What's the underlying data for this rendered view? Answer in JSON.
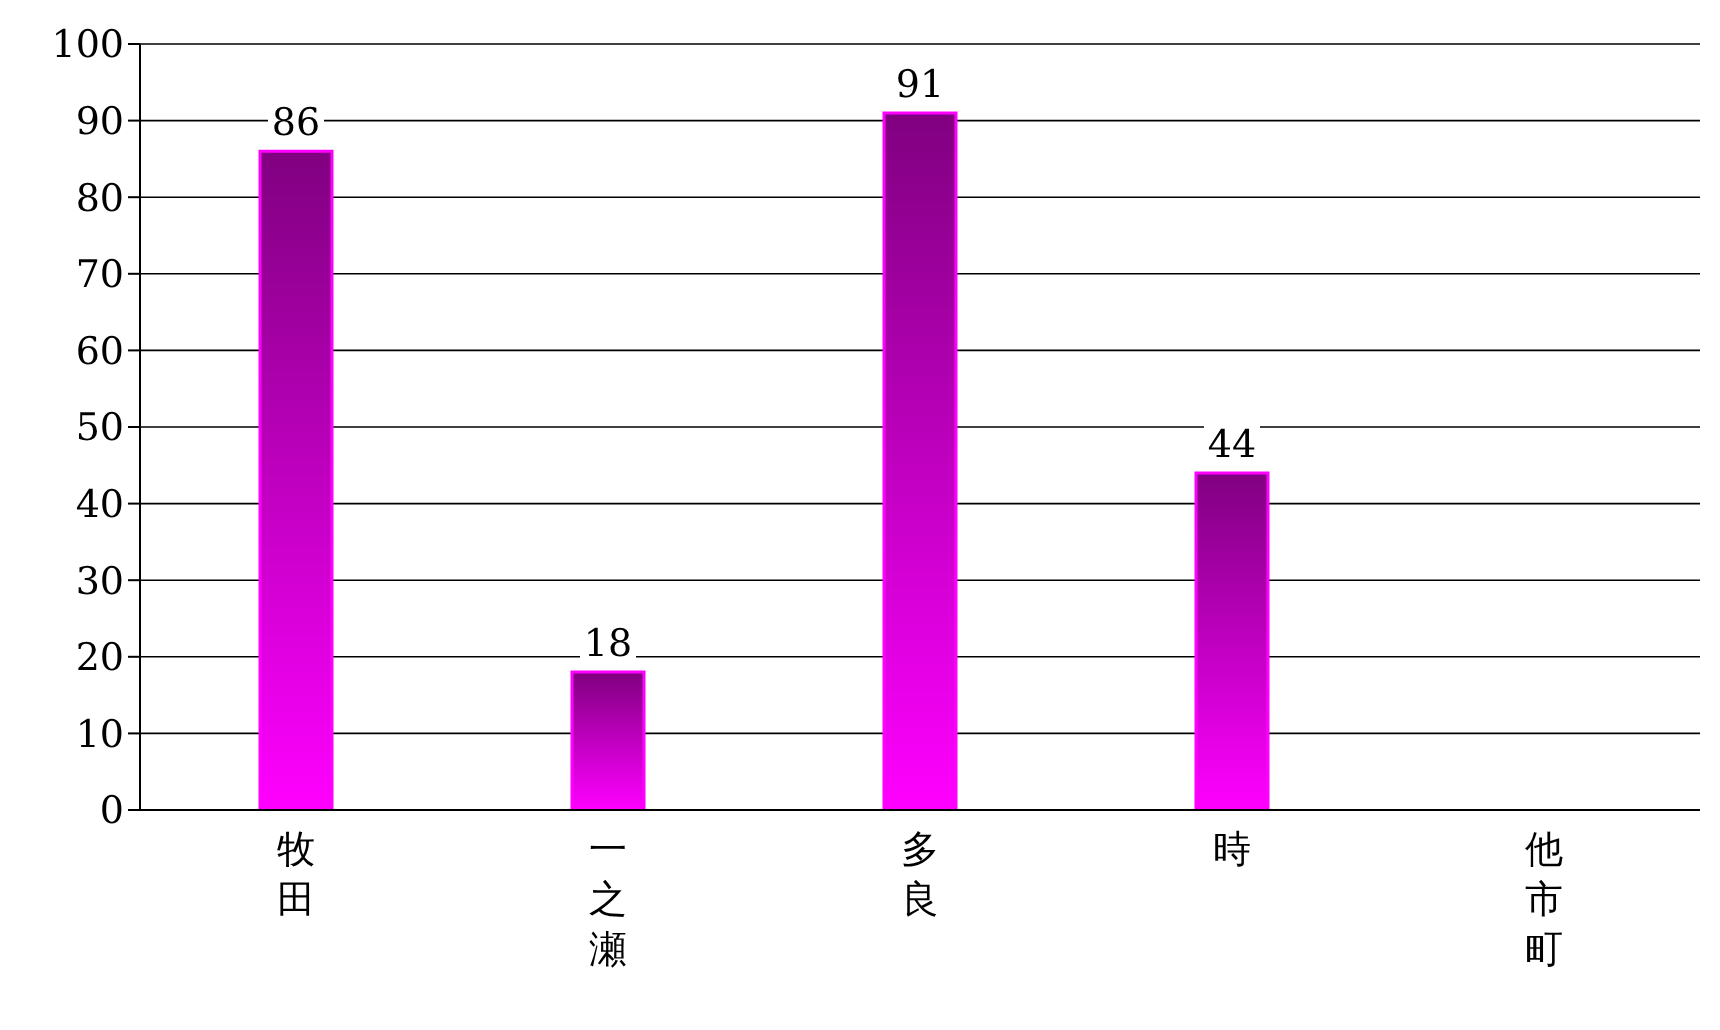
{
  "chart_data": {
    "type": "bar",
    "categories": [
      "牧田",
      "一之瀬",
      "多良",
      "時",
      "他市町"
    ],
    "values": [
      86,
      18,
      91,
      44,
      null
    ],
    "color": "#ff00ff",
    "ylim": [
      0,
      100
    ],
    "yticks": [
      0,
      10,
      20,
      30,
      40,
      50,
      60,
      70,
      80,
      90,
      100
    ],
    "grid": "y",
    "data_labels": true
  }
}
